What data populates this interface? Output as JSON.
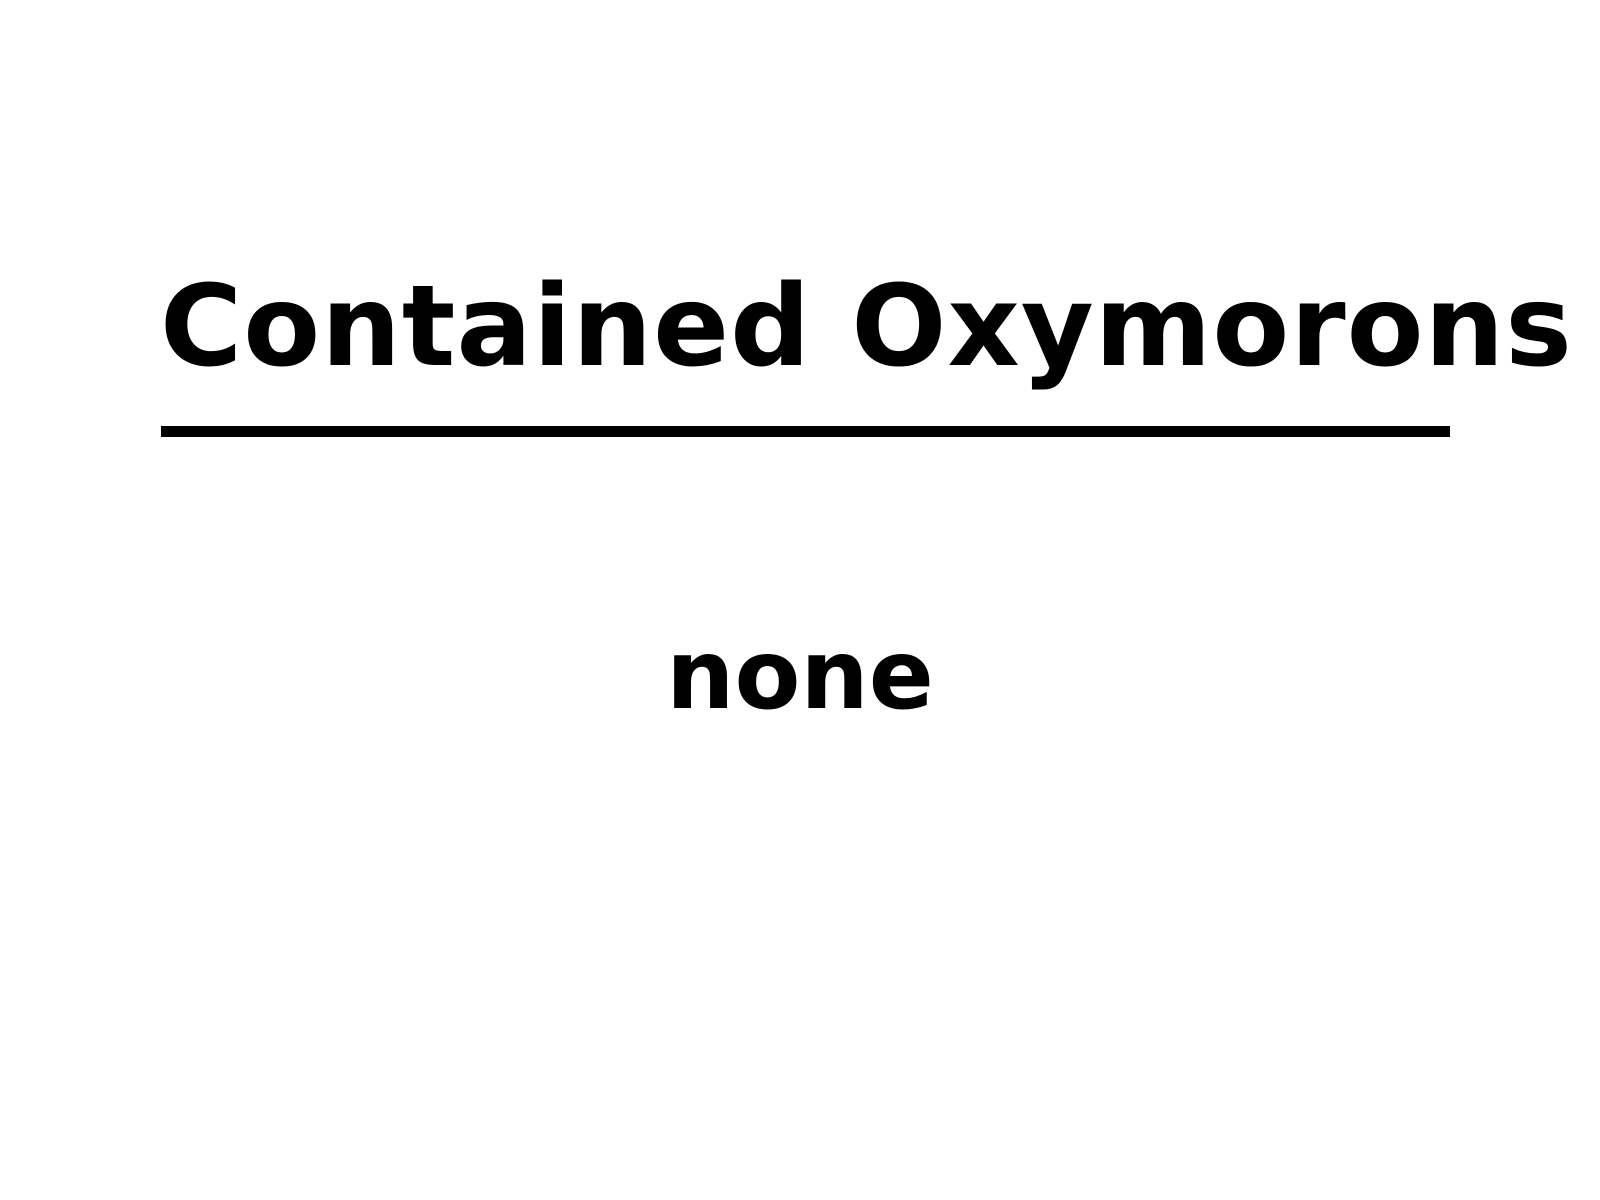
{
  "slide": {
    "title": "Contained Oxymorons",
    "body": "none"
  }
}
